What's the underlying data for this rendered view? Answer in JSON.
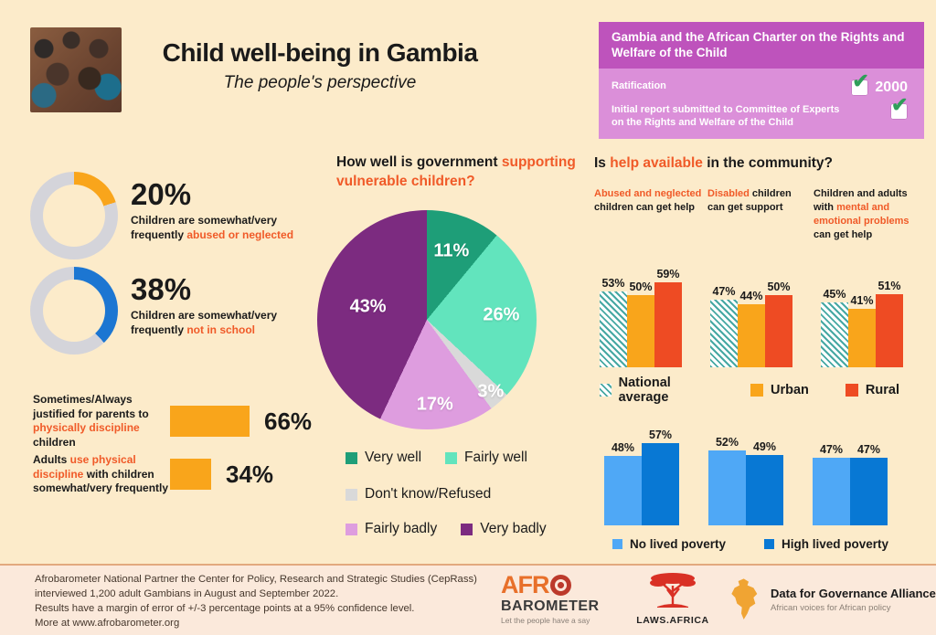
{
  "header": {
    "title": "Child well-being in Gambia",
    "subtitle": "The people's perspective"
  },
  "charter_box": {
    "title": "Gambia and the African Charter on the Rights and Welfare of the Child",
    "rows": [
      {
        "label": "Ratification",
        "checked": true,
        "value": "2000"
      },
      {
        "label": "Initial report submitted to Committee of Experts on the Rights and Welfare of the Child",
        "checked": true,
        "value": ""
      }
    ],
    "header_color": "#BE53BC",
    "body_color": "#DB8FD9",
    "check_color": "#2F9E59"
  },
  "left": {
    "donut_captions": [
      {
        "pre": "Children are somewhat/very frequently ",
        "hl": "abused or neglected",
        "post": ""
      },
      {
        "pre": "Children are somewhat/very frequently ",
        "hl": "not in school",
        "post": ""
      }
    ],
    "hbar_captions": [
      {
        "pre": "Sometimes/Always justified for parents to ",
        "hl": "physically discipline",
        "post": " children"
      },
      {
        "pre": "Adults ",
        "hl": "use physical discipline",
        "post": " with children somewhat/very frequently"
      }
    ]
  },
  "pie_section": {
    "title_pre": "How well is government ",
    "title_hl": "supporting vulnerable children?"
  },
  "help_section": {
    "title_pre": "Is ",
    "title_hl": "help available",
    "title_post": " in the community?",
    "headers": [
      {
        "pre": "",
        "hl": "Abused and neglected",
        "post": " children can get help"
      },
      {
        "pre": "",
        "hl": "Disabled",
        "post": " children can get support"
      },
      {
        "pre": "Children and adults with ",
        "hl": "mental and emotional problems",
        "post": " can get help"
      }
    ]
  },
  "footer": {
    "lines": [
      "Afrobarometer National Partner the Center for Policy, Research and Strategic Studies (CepRass)",
      "interviewed 1,200 adult Gambians in August and September 2022.",
      "Results have a margin of error of +/-3 percentage points at a 95% confidence level.",
      "More at www.afrobarometer.org"
    ],
    "logos": {
      "afrobarometer": {
        "line1": "AFR",
        "line2": "BAROMETER",
        "tagline": "Let the people have a say"
      },
      "laws_africa": {
        "label": "LAWS.AFRICA"
      },
      "dga": {
        "title": "Data for Governance Alliance",
        "subtitle": "African voices for African policy"
      }
    }
  },
  "theme": {
    "background": "#FCEBCA",
    "accent_text": "#F05A28",
    "donut_track": "#D4D4DA"
  },
  "chart_data": [
    {
      "id": "gov_support_pie",
      "type": "pie",
      "title": "How well is government supporting vulnerable children?",
      "labels": [
        "Very well",
        "Fairly well",
        "Don't know/Refused",
        "Fairly badly",
        "Very badly"
      ],
      "values": [
        11,
        26,
        3,
        17,
        43
      ],
      "colors": [
        "#1E9E78",
        "#62E4BD",
        "#D9D9D9",
        "#DE9DDF",
        "#7C2B80"
      ],
      "value_suffix": "%",
      "start_angle": "top-clockwise",
      "legend_rows": [
        [
          0,
          1
        ],
        [
          2
        ],
        [
          3,
          4
        ]
      ],
      "legend_position": "bottom"
    },
    {
      "id": "community_help_bars",
      "type": "bar",
      "title": "Is help available in the community?",
      "categories": [
        "Abused and neglected children can get help",
        "Disabled children can get support",
        "Children and adults with mental and emotional problems can get help"
      ],
      "series": [
        {
          "name": "National average",
          "values": [
            53,
            47,
            45
          ],
          "color": "#46A8A3",
          "pattern": "diagonal-hatch"
        },
        {
          "name": "Urban",
          "values": [
            50,
            44,
            41
          ],
          "color": "#F9A51B",
          "pattern": "solid"
        },
        {
          "name": "Rural",
          "values": [
            59,
            50,
            51
          ],
          "color": "#EE4B23",
          "pattern": "solid"
        }
      ],
      "value_suffix": "%",
      "ylim": [
        0,
        70
      ],
      "legend_position": "bottom"
    },
    {
      "id": "lived_poverty_bars",
      "type": "bar",
      "categories": [
        "Abused and neglected children can get help",
        "Disabled children can get support",
        "Children and adults with mental and emotional problems can get help"
      ],
      "series": [
        {
          "name": "No lived poverty",
          "values": [
            48,
            52,
            47
          ],
          "color": "#4FA8F6",
          "pattern": "solid"
        },
        {
          "name": "High lived poverty",
          "values": [
            57,
            49,
            47
          ],
          "color": "#0878D4",
          "pattern": "solid"
        }
      ],
      "value_suffix": "%",
      "ylim": [
        0,
        70
      ],
      "legend_position": "bottom"
    },
    {
      "id": "child_risk_donuts",
      "type": "donut",
      "items": [
        {
          "value": 20,
          "display": "20%",
          "color": "#F9A51B",
          "label": "Children are somewhat/very frequently abused or neglected"
        },
        {
          "value": 38,
          "display": "38%",
          "color": "#1C76D2",
          "label": "Children are somewhat/very frequently not in school"
        }
      ],
      "track_color": "#D4D4DA"
    },
    {
      "id": "discipline_bars",
      "type": "bar",
      "orientation": "horizontal",
      "categories": [
        "Sometimes/Always justified for parents to physically discipline children",
        "Adults use physical discipline with children somewhat/very frequently"
      ],
      "values": [
        66,
        34
      ],
      "displays": [
        "66%",
        "34%"
      ],
      "color": "#F9A51B",
      "value_suffix": "%"
    }
  ]
}
